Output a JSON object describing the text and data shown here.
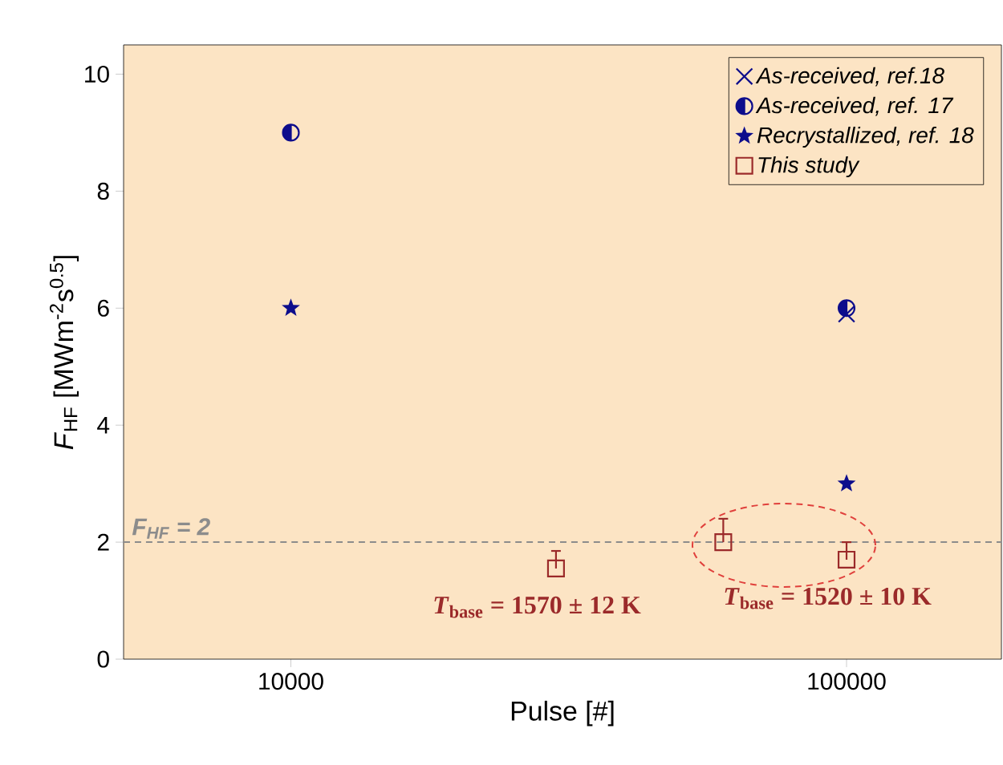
{
  "chart_data": {
    "type": "scatter",
    "xlabel": "Pulse [#]",
    "ylabel": "*F*$_{HF}$ [MWm$^{-2}$s$^{0.5}$]",
    "log": "x",
    "xlim": [
      5000,
      190000
    ],
    "xticks": [
      10000,
      100000
    ],
    "ylim": [
      0,
      10.5
    ],
    "yticks": [
      0,
      2,
      4,
      6,
      8,
      10
    ],
    "legend": "top right",
    "series": [
      {
        "name": "As-received, ref.18",
        "color": "#0d0d8c",
        "marker": "cross",
        "x": [
          100000
        ],
        "values": [
          5.9
        ]
      },
      {
        "name": "As-received, ref. 17",
        "color": "#0d0d8c",
        "marker": "circle",
        "x": [
          10000,
          100000
        ],
        "values": [
          9,
          6
        ]
      },
      {
        "name": "Recrystallized, ref. 18",
        "color": "#0d0d8c",
        "marker": "star",
        "x": [
          10000,
          100000
        ],
        "values": [
          6,
          3
        ]
      },
      {
        "name": "This study",
        "color": "#9b2a2a",
        "marker": "square",
        "x": [
          30000,
          60000,
          100000
        ],
        "values": [
          1.55,
          2.0,
          1.7
        ],
        "errors": [
          [
            1.55,
            1.85
          ],
          [
            2.0,
            2.4
          ],
          [
            1.7,
            2.0
          ]
        ]
      }
    ],
    "ref_lines": [
      {
        "axis": "y",
        "value": 2,
        "label": "F$_{HF}$ = 2",
        "color": "#8c8c8c",
        "line_style": "dashed"
      }
    ],
    "annotations": [
      {
        "text": "*T*$_{base}$ = 1570 ± 12 K",
        "x": 30000,
        "y": 1.55
      },
      {
        "text": "*T*$_{base}$ = 1520 ± 10 K",
        "x": 100000,
        "y": 1.7
      }
    ]
  }
}
